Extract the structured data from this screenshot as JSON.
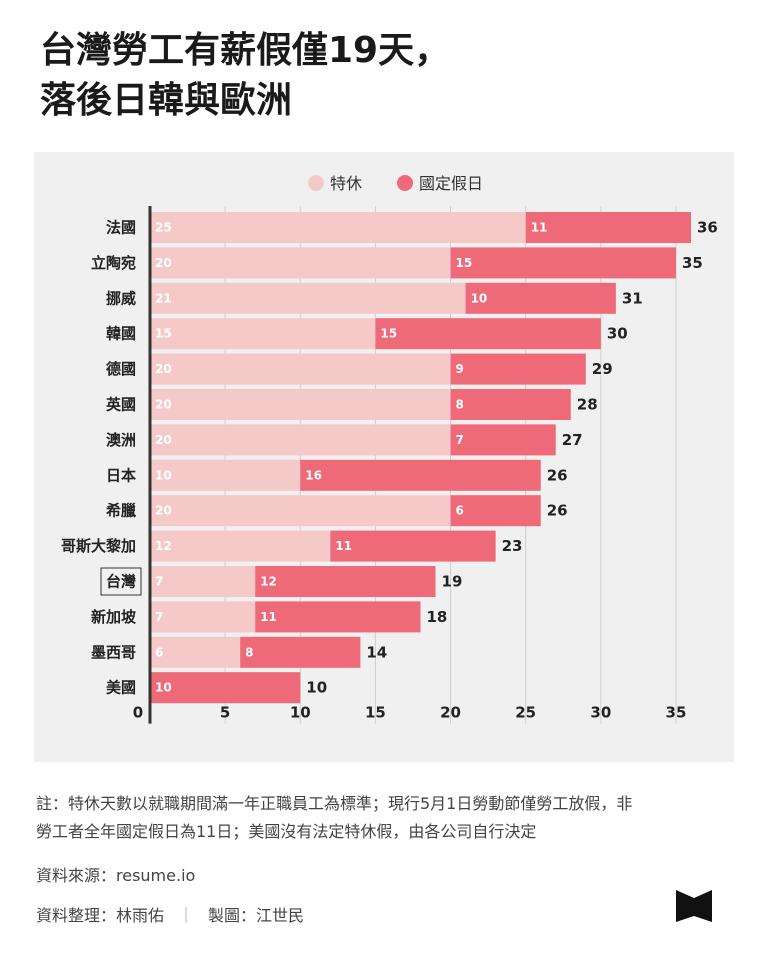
{
  "title": {
    "line1": "台灣勞工有薪假僅19天，",
    "line2": "落後日韓與歐洲"
  },
  "colors": {
    "annual_leave": "#f6c9c9",
    "public_holiday": "#ef6a79",
    "panel_bg": "#f0f0f0",
    "grid": "#cfcfcf",
    "axis": "#333333"
  },
  "chart_data": {
    "type": "bar",
    "orientation": "horizontal",
    "stacked": true,
    "categories": [
      "法國",
      "立陶宛",
      "挪威",
      "韓國",
      "德國",
      "英國",
      "澳洲",
      "日本",
      "希臘",
      "哥斯大黎加",
      "台灣",
      "新加坡",
      "墨西哥",
      "美國"
    ],
    "highlight_category": "台灣",
    "series": [
      {
        "name": "特休",
        "values": [
          25,
          20,
          21,
          15,
          20,
          20,
          20,
          10,
          20,
          12,
          7,
          7,
          6,
          0
        ]
      },
      {
        "name": "國定假日",
        "values": [
          11,
          15,
          10,
          15,
          9,
          8,
          7,
          16,
          6,
          11,
          12,
          11,
          8,
          10
        ]
      }
    ],
    "totals": [
      36,
      35,
      31,
      30,
      29,
      28,
      27,
      26,
      26,
      23,
      19,
      18,
      14,
      10
    ],
    "xticks": [
      0,
      5,
      10,
      15,
      20,
      25,
      30,
      35
    ],
    "xlim": [
      0,
      37
    ],
    "grid": true,
    "legend_position": "top-center"
  },
  "notes": {
    "line1": "註：特休天數以就職期間滿一年正職員工為標準；現行5月1日勞動節僅勞工放假，非",
    "line2": "勞工者全年國定假日為11日；美國沒有法定特休假，由各公司自行決定"
  },
  "source": "資料來源：resume.io",
  "credits": {
    "compiled": "資料整理：林雨佑",
    "separator": "｜",
    "design": "製圖：江世民"
  },
  "logo_icon": "book-logo-icon"
}
